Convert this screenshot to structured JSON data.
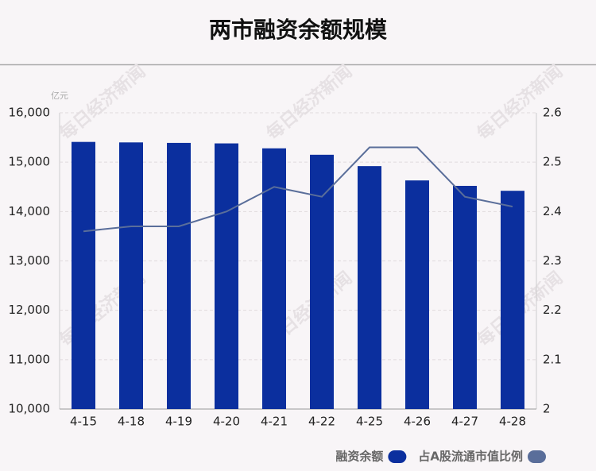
{
  "chart_data": {
    "type": "bar",
    "title": "两市融资余额规模",
    "y_unit": "亿元",
    "watermark": "每日经济新闻",
    "categories": [
      "4-15",
      "4-18",
      "4-19",
      "4-20",
      "4-21",
      "4-22",
      "4-25",
      "4-26",
      "4-27",
      "4-28"
    ],
    "series": [
      {
        "name": "融资余额",
        "type": "bar",
        "color": "#0b2f9e",
        "values": [
          15410,
          15400,
          15390,
          15380,
          15280,
          15150,
          14920,
          14630,
          14520,
          14420
        ]
      },
      {
        "name": "占A股流通市值比例",
        "type": "line",
        "axis": "y2",
        "color": "#5a6e9a",
        "values": [
          2.36,
          2.37,
          2.37,
          2.4,
          2.45,
          2.43,
          2.53,
          2.53,
          2.43,
          2.41
        ]
      }
    ],
    "ylim": [
      10000,
      16000
    ],
    "yticks": [
      {
        "value": 10000,
        "label": "10,000"
      },
      {
        "value": 11000,
        "label": "11,000"
      },
      {
        "value": 12000,
        "label": "12,000"
      },
      {
        "value": 13000,
        "label": "13,000"
      },
      {
        "value": 14000,
        "label": "14,000"
      },
      {
        "value": 15000,
        "label": "15,000"
      },
      {
        "value": 16000,
        "label": "16,000"
      }
    ],
    "y2lim": [
      2,
      2.6
    ],
    "y2ticks": [
      2,
      2.1,
      2.2,
      2.3,
      2.4,
      2.5,
      2.6
    ],
    "grid": true,
    "legend": "bottom-right"
  }
}
